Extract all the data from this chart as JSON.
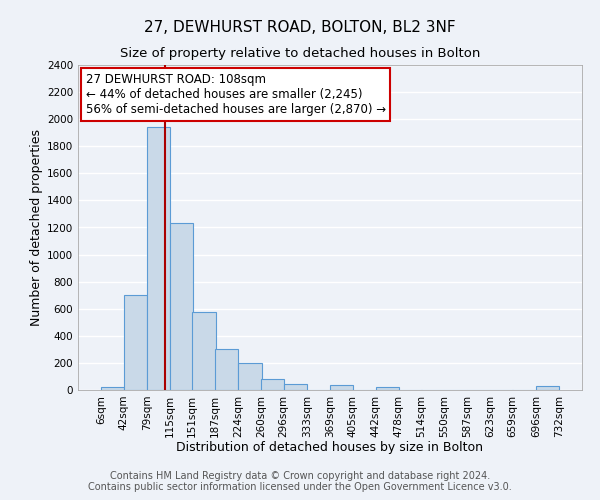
{
  "title": "27, DEWHURST ROAD, BOLTON, BL2 3NF",
  "subtitle": "Size of property relative to detached houses in Bolton",
  "xlabel": "Distribution of detached houses by size in Bolton",
  "ylabel": "Number of detached properties",
  "bar_left_edges": [
    6,
    42,
    79,
    115,
    151,
    187,
    224,
    260,
    296,
    333,
    369,
    405,
    442,
    478,
    514,
    550,
    587,
    623,
    659,
    696
  ],
  "bar_heights": [
    25,
    700,
    1940,
    1230,
    575,
    300,
    200,
    80,
    45,
    0,
    35,
    0,
    20,
    0,
    0,
    0,
    0,
    0,
    0,
    30
  ],
  "bin_width": 37,
  "bar_facecolor": "#c9d9e8",
  "bar_edgecolor": "#5b9bd5",
  "vline_x": 108,
  "vline_color": "#aa0000",
  "ylim": [
    0,
    2400
  ],
  "yticks": [
    0,
    200,
    400,
    600,
    800,
    1000,
    1200,
    1400,
    1600,
    1800,
    2000,
    2200,
    2400
  ],
  "xtick_labels": [
    "6sqm",
    "42sqm",
    "79sqm",
    "115sqm",
    "151sqm",
    "187sqm",
    "224sqm",
    "260sqm",
    "296sqm",
    "333sqm",
    "369sqm",
    "405sqm",
    "442sqm",
    "478sqm",
    "514sqm",
    "550sqm",
    "587sqm",
    "623sqm",
    "659sqm",
    "696sqm",
    "732sqm"
  ],
  "annotation_line1": "27 DEWHURST ROAD: 108sqm",
  "annotation_line2": "← 44% of detached houses are smaller (2,245)",
  "annotation_line3": "56% of semi-detached houses are larger (2,870) →",
  "footer_line1": "Contains HM Land Registry data © Crown copyright and database right 2024.",
  "footer_line2": "Contains public sector information licensed under the Open Government Licence v3.0.",
  "bg_color": "#eef2f8",
  "plot_bg_color": "#eef2f8",
  "grid_color": "#ffffff",
  "title_fontsize": 11,
  "subtitle_fontsize": 9.5,
  "axis_label_fontsize": 9,
  "tick_fontsize": 7.5,
  "footer_fontsize": 7,
  "annotation_fontsize": 8.5
}
